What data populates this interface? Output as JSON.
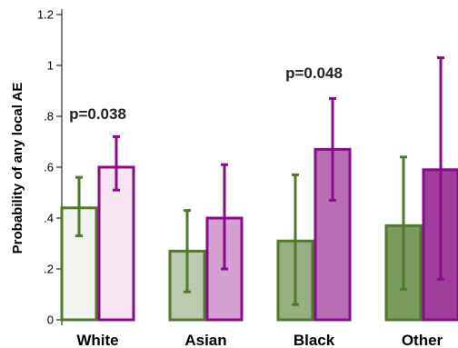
{
  "chart_data": {
    "type": "bar",
    "categories": [
      "White",
      "Asian",
      "Black",
      "Other"
    ],
    "ylabel": "Probability of any local AE",
    "ylim": [
      0,
      1.2
    ],
    "yticks": [
      {
        "value": 0,
        "label": "0"
      },
      {
        "value": 0.2,
        "label": ".2"
      },
      {
        "value": 0.4,
        "label": ".4"
      },
      {
        "value": 0.6,
        "label": ".6"
      },
      {
        "value": 0.8,
        "label": ".8"
      },
      {
        "value": 1.0,
        "label": "1"
      },
      {
        "value": 1.2,
        "label": "1.2"
      }
    ],
    "series": [
      {
        "values": [
          0.44,
          0.27,
          0.31,
          0.37
        ],
        "err_low": [
          0.33,
          0.11,
          0.06,
          0.12
        ],
        "err_high": [
          0.56,
          0.43,
          0.57,
          0.64
        ],
        "edge_color": "#4f7a2b",
        "fills": [
          "#f1f4ef",
          "#bccbaf",
          "#98b07f",
          "#7a9a5e"
        ]
      },
      {
        "values": [
          0.6,
          0.4,
          0.67,
          0.59
        ],
        "err_low": [
          0.51,
          0.2,
          0.47,
          0.16
        ],
        "err_high": [
          0.72,
          0.61,
          0.87,
          1.03
        ],
        "edge_color": "#8b0a8b",
        "fills": [
          "#f7e5f2",
          "#d4a0d0",
          "#b96db4",
          "#a03e9b"
        ]
      }
    ],
    "annotations": [
      {
        "category": "White",
        "text": "p=0.038",
        "y": 0.79
      },
      {
        "category": "Black",
        "text": "p=0.048",
        "y": 0.95
      }
    ],
    "grid": false,
    "legend": "none"
  }
}
